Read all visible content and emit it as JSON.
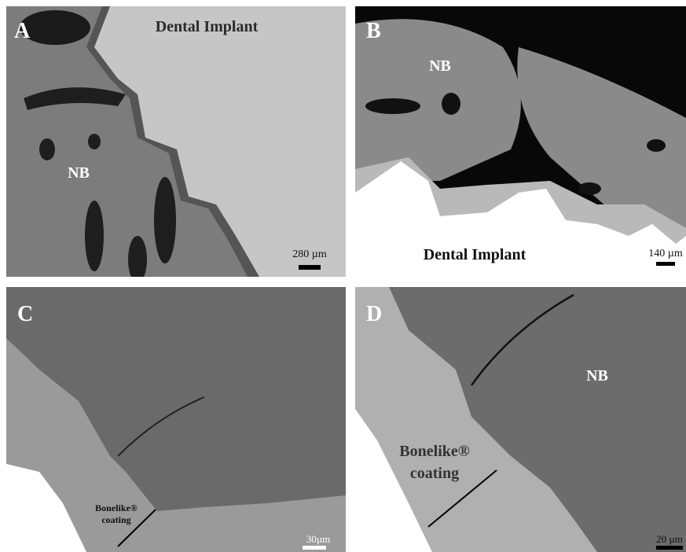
{
  "panels": [
    {
      "letter": "A",
      "labels": [
        "Dental Implant",
        "NB"
      ],
      "scale": "280 µm"
    },
    {
      "letter": "B",
      "labels": [
        "NB",
        "Dental Implant"
      ],
      "scale": "140 µm"
    },
    {
      "letter": "C",
      "coating": [
        "Bonelike®",
        "coating"
      ],
      "scale": "30µm"
    },
    {
      "letter": "D",
      "labels": [
        "NB"
      ],
      "coating": [
        "Bonelike®",
        "coating"
      ],
      "scale": "20 µm"
    }
  ]
}
